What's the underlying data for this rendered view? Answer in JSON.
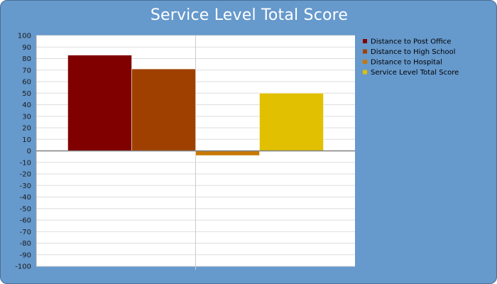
{
  "chart_data": {
    "type": "bar",
    "title": "Service Level Total Score",
    "categories": [
      ""
    ],
    "series": [
      {
        "name": "Distance to Post Office",
        "values": [
          83
        ],
        "color": "#800000"
      },
      {
        "name": "Distance to High School",
        "values": [
          71
        ],
        "color": "#a04000"
      },
      {
        "name": "Distance to Hospital",
        "values": [
          -4
        ],
        "color": "#c87800"
      },
      {
        "name": "Service Level Total Score",
        "values": [
          50
        ],
        "color": "#e0c000"
      }
    ],
    "ylim": [
      -100,
      100
    ],
    "yticks": [
      100,
      90,
      80,
      70,
      60,
      50,
      40,
      30,
      20,
      10,
      0,
      -10,
      -20,
      -30,
      -40,
      -50,
      -60,
      -70,
      -80,
      -90,
      -100
    ],
    "grid": true,
    "legend": "top-right",
    "xlabel": "",
    "ylabel": ""
  },
  "colors": {
    "background": "#6699cc",
    "plot_area": "#ffffff",
    "grid": "#dddddd",
    "zero_line": "#808080"
  }
}
